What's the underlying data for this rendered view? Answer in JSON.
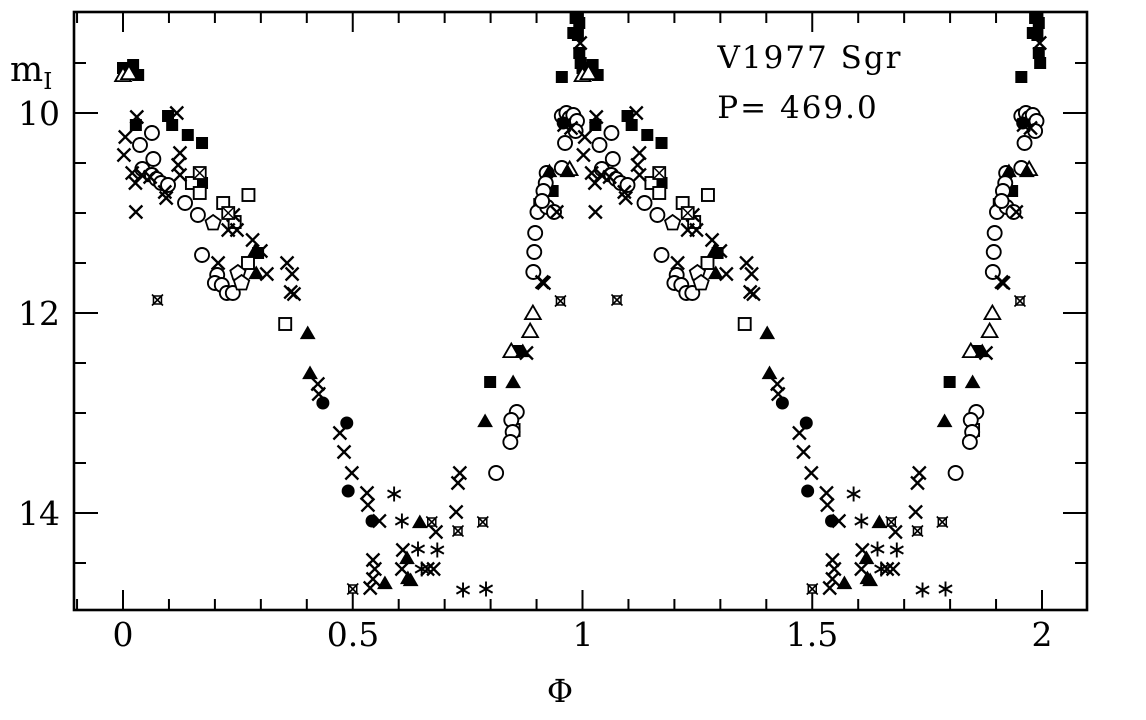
{
  "chart_data": {
    "type": "scatter",
    "title": "V1977 Sgr",
    "subtitle": "P= 469.0",
    "xlabel": "Φ",
    "ylabel": "m_I",
    "ylabel_main": "m",
    "ylabel_sub": "I",
    "x_range": [
      -0.107,
      2.098
    ],
    "y_range_mag": [
      14.97,
      8.99
    ],
    "y_axis_inverted": true,
    "grid": false,
    "x_major_ticks": [
      0,
      0.5,
      1,
      1.5,
      2
    ],
    "x_tick_labels": [
      "0",
      "0.5",
      "1",
      "1.5",
      "2"
    ],
    "x_minor_step": 0.1,
    "y_major_ticks": [
      10,
      12,
      14
    ],
    "y_tick_labels": [
      "10",
      "12",
      "14"
    ],
    "y_minor_ticks": [
      9,
      9.5,
      10.5,
      11,
      11.5,
      12.5,
      13,
      13.5,
      14.5
    ],
    "phase_duplication": "each point is plotted at phase and phase+1",
    "series": [
      {
        "name": "filled-square",
        "symbol": "filled_square",
        "points": [
          [
            0.955,
            9.64
          ],
          [
            0.985,
            9.05
          ],
          [
            0.99,
            9.02
          ],
          [
            0.993,
            9.1
          ],
          [
            0.98,
            9.2
          ],
          [
            0.99,
            9.22
          ],
          [
            0.993,
            9.4
          ],
          [
            0.996,
            9.5
          ],
          [
            0.0,
            9.55
          ],
          [
            0.022,
            9.52
          ],
          [
            0.033,
            9.62
          ],
          [
            0.028,
            10.12
          ],
          [
            0.098,
            10.03
          ],
          [
            0.107,
            10.12
          ],
          [
            0.141,
            10.22
          ],
          [
            0.172,
            10.3
          ],
          [
            0.172,
            10.7
          ],
          [
            0.294,
            11.4
          ],
          [
            0.799,
            12.69
          ],
          [
            0.856,
            12.38
          ],
          [
            0.935,
            10.78
          ]
        ]
      },
      {
        "name": "open-square",
        "symbol": "open_square",
        "points": [
          [
            0.15,
            10.7
          ],
          [
            0.167,
            10.8
          ],
          [
            0.218,
            10.9
          ],
          [
            0.243,
            11.09
          ],
          [
            0.273,
            10.82
          ],
          [
            0.272,
            11.5
          ],
          [
            0.353,
            12.11
          ],
          [
            0.85,
            13.17
          ],
          [
            0.908,
            10.92
          ]
        ]
      },
      {
        "name": "open-circle",
        "symbol": "open_circle",
        "points": [
          [
            0.955,
            10.03
          ],
          [
            0.965,
            10.0
          ],
          [
            0.972,
            10.05
          ],
          [
            0.98,
            10.02
          ],
          [
            0.988,
            10.08
          ],
          [
            0.985,
            10.18
          ],
          [
            0.962,
            10.3
          ],
          [
            0.955,
            10.55
          ],
          [
            0.037,
            10.32
          ],
          [
            0.042,
            10.56
          ],
          [
            0.063,
            10.2
          ],
          [
            0.066,
            10.46
          ],
          [
            0.063,
            10.62
          ],
          [
            0.073,
            10.66
          ],
          [
            0.083,
            10.7
          ],
          [
            0.098,
            10.72
          ],
          [
            0.135,
            10.9
          ],
          [
            0.163,
            11.02
          ],
          [
            0.172,
            11.42
          ],
          [
            0.205,
            11.62
          ],
          [
            0.2,
            11.7
          ],
          [
            0.215,
            11.72
          ],
          [
            0.226,
            11.8
          ],
          [
            0.239,
            11.8
          ],
          [
            0.812,
            13.6
          ],
          [
            0.857,
            12.99
          ],
          [
            0.845,
            13.07
          ],
          [
            0.848,
            13.19
          ],
          [
            0.843,
            13.29
          ],
          [
            0.902,
            10.99
          ],
          [
            0.923,
            10.94
          ],
          [
            0.897,
            11.2
          ],
          [
            0.895,
            11.39
          ],
          [
            0.893,
            11.59
          ],
          [
            0.922,
            10.6
          ],
          [
            0.92,
            10.7
          ],
          [
            0.915,
            10.78
          ],
          [
            0.912,
            10.88
          ],
          [
            0.938,
            10.99
          ]
        ]
      },
      {
        "name": "filled-circle",
        "symbol": "filled_circle",
        "points": [
          [
            0.958,
            10.1
          ],
          [
            0.435,
            12.9
          ],
          [
            0.487,
            13.1
          ],
          [
            0.49,
            13.78
          ],
          [
            0.542,
            14.08
          ]
        ]
      },
      {
        "name": "cross",
        "symbol": "cross",
        "points": [
          [
            0.995,
            9.3
          ],
          [
            0.03,
            10.04
          ],
          [
            0.005,
            10.24
          ],
          [
            0.002,
            10.42
          ],
          [
            0.117,
            10.0
          ],
          [
            0.124,
            10.4
          ],
          [
            0.12,
            10.52
          ],
          [
            0.124,
            10.62
          ],
          [
            0.02,
            10.6
          ],
          [
            0.041,
            10.62
          ],
          [
            0.059,
            10.64
          ],
          [
            0.091,
            10.79
          ],
          [
            0.094,
            10.85
          ],
          [
            0.027,
            10.7
          ],
          [
            0.028,
            10.99
          ],
          [
            0.96,
            10.12
          ],
          [
            0.975,
            10.15
          ],
          [
            0.944,
            10.99
          ],
          [
            0.229,
            11.17
          ],
          [
            0.248,
            11.17
          ],
          [
            0.24,
            11.02
          ],
          [
            0.282,
            11.27
          ],
          [
            0.207,
            11.5
          ],
          [
            0.3,
            11.38
          ],
          [
            0.313,
            11.61
          ],
          [
            0.357,
            11.5
          ],
          [
            0.368,
            11.61
          ],
          [
            0.365,
            11.79
          ],
          [
            0.372,
            11.81
          ],
          [
            0.424,
            12.71
          ],
          [
            0.426,
            12.81
          ],
          [
            0.472,
            13.2
          ],
          [
            0.481,
            13.39
          ],
          [
            0.498,
            13.6
          ],
          [
            0.531,
            13.8
          ],
          [
            0.533,
            13.92
          ],
          [
            0.558,
            14.08
          ],
          [
            0.544,
            14.47
          ],
          [
            0.548,
            14.56
          ],
          [
            0.544,
            14.66
          ],
          [
            0.538,
            14.75
          ],
          [
            0.609,
            14.37
          ],
          [
            0.607,
            14.56
          ],
          [
            0.663,
            14.56
          ],
          [
            0.676,
            14.56
          ],
          [
            0.681,
            14.19
          ],
          [
            0.725,
            13.99
          ],
          [
            0.729,
            13.7
          ],
          [
            0.733,
            13.6
          ],
          [
            0.878,
            12.4
          ],
          [
            0.912,
            11.69
          ],
          [
            0.916,
            11.7
          ]
        ]
      },
      {
        "name": "asterisk",
        "symbol": "asterisk",
        "points": [
          [
            0.59,
            13.81
          ],
          [
            0.607,
            14.08
          ],
          [
            0.642,
            14.36
          ],
          [
            0.684,
            14.37
          ],
          [
            0.65,
            14.56
          ],
          [
            0.74,
            14.77
          ],
          [
            0.79,
            14.76
          ]
        ]
      },
      {
        "name": "open-triangle",
        "symbol": "open_triangle",
        "points": [
          [
            0.0,
            9.62
          ],
          [
            0.013,
            9.6
          ],
          [
            0.972,
            10.56
          ],
          [
            0.886,
            12.18
          ],
          [
            0.892,
            12.0
          ],
          [
            0.845,
            12.38
          ]
        ]
      },
      {
        "name": "filled-triangle",
        "symbol": "filled_triangle",
        "points": [
          [
            0.967,
            10.58
          ],
          [
            0.928,
            10.58
          ],
          [
            0.29,
            11.6
          ],
          [
            0.287,
            11.38
          ],
          [
            0.402,
            12.2
          ],
          [
            0.407,
            12.6
          ],
          [
            0.788,
            13.08
          ],
          [
            0.849,
            12.69
          ],
          [
            0.87,
            12.38
          ],
          [
            0.618,
            14.45
          ],
          [
            0.62,
            14.65
          ],
          [
            0.626,
            14.67
          ],
          [
            0.57,
            14.7
          ],
          [
            0.646,
            14.09
          ]
        ]
      },
      {
        "name": "open-pentagon",
        "symbol": "pentagon",
        "points": [
          [
            0.196,
            11.1
          ],
          [
            0.25,
            11.6
          ],
          [
            0.258,
            11.7
          ]
        ]
      },
      {
        "name": "boxed-x",
        "symbol": "boxed_x",
        "points": [
          [
            0.167,
            10.6
          ],
          [
            0.229,
            11.0
          ]
        ]
      },
      {
        "name": "small-box-x",
        "symbol": "small_box_x",
        "points": [
          [
            0.075,
            11.87
          ],
          [
            0.952,
            11.88
          ],
          [
            0.5,
            14.76
          ],
          [
            0.672,
            14.09
          ],
          [
            0.729,
            14.18
          ],
          [
            0.783,
            14.09
          ]
        ]
      }
    ]
  }
}
